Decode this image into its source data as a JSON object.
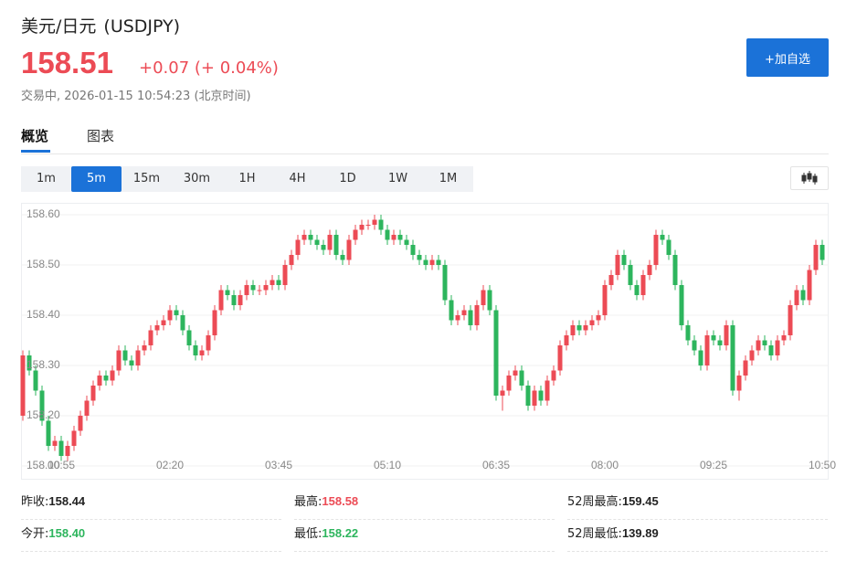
{
  "header": {
    "title": "美元/日元",
    "symbol": "(USDJPY)",
    "price": "158.51",
    "change": "+0.07 (+ 0.04%)",
    "status": "交易中, 2026-01-15 10:54:23 (北京时间)",
    "add_button": "+加自选"
  },
  "tabs": [
    "概览",
    "图表"
  ],
  "active_tab": 0,
  "intervals": [
    "1m",
    "5m",
    "15m",
    "30m",
    "1H",
    "4H",
    "1D",
    "1W",
    "1M"
  ],
  "active_interval": 1,
  "chart_data": {
    "type": "candlestick",
    "categories": [
      null,
      null,
      null,
      null,
      null,
      null,
      "00:55",
      null,
      null,
      null,
      null,
      null,
      null,
      null,
      null,
      null,
      null,
      null,
      null,
      null,
      null,
      null,
      null,
      "02:20",
      null,
      null,
      null,
      null,
      null,
      null,
      null,
      null,
      null,
      null,
      null,
      null,
      null,
      null,
      null,
      null,
      "03:45",
      null,
      null,
      null,
      null,
      null,
      null,
      null,
      null,
      null,
      null,
      null,
      null,
      null,
      null,
      null,
      null,
      "05:10",
      null,
      null,
      null,
      null,
      null,
      null,
      null,
      null,
      null,
      null,
      null,
      null,
      null,
      null,
      null,
      null,
      "06:35",
      null,
      null,
      null,
      null,
      null,
      null,
      null,
      null,
      null,
      null,
      null,
      null,
      null,
      null,
      null,
      null,
      "08:00",
      null,
      null,
      null,
      null,
      null,
      null,
      null,
      null,
      null,
      null,
      null,
      null,
      null,
      null,
      null,
      null,
      "09:25",
      null,
      null,
      null,
      null,
      null,
      null,
      null,
      null,
      null,
      null,
      null,
      null,
      null,
      null,
      null,
      null,
      "10:50"
    ],
    "open": [
      158.2,
      158.32,
      158.29,
      158.25,
      158.19,
      158.14,
      158.15,
      158.12,
      158.14,
      158.17,
      158.2,
      158.23,
      158.26,
      158.28,
      158.27,
      158.29,
      158.33,
      158.31,
      158.3,
      158.33,
      158.34,
      158.37,
      158.38,
      158.39,
      158.41,
      158.4,
      158.37,
      158.34,
      158.32,
      158.33,
      158.36,
      158.41,
      158.45,
      158.44,
      158.42,
      158.44,
      158.46,
      158.45,
      158.45,
      158.46,
      158.47,
      158.46,
      158.5,
      158.52,
      158.55,
      158.56,
      158.55,
      158.54,
      158.53,
      158.56,
      158.52,
      158.51,
      158.55,
      158.57,
      158.58,
      158.58,
      158.59,
      158.57,
      158.55,
      158.56,
      158.55,
      158.54,
      158.52,
      158.51,
      158.5,
      158.51,
      158.5,
      158.43,
      158.39,
      158.4,
      158.41,
      158.38,
      158.42,
      158.45,
      158.41,
      158.24,
      158.25,
      158.28,
      158.29,
      158.26,
      158.22,
      158.25,
      158.23,
      158.27,
      158.29,
      158.34,
      158.36,
      158.38,
      158.37,
      158.38,
      158.39,
      158.4,
      158.46,
      158.48,
      158.52,
      158.5,
      158.46,
      158.44,
      158.48,
      158.5,
      158.56,
      158.55,
      158.52,
      158.46,
      158.38,
      158.35,
      158.33,
      158.3,
      158.36,
      158.35,
      158.34,
      158.38,
      158.25,
      158.28,
      158.31,
      158.33,
      158.35,
      158.34,
      158.32,
      158.35,
      158.36,
      158.42,
      158.45,
      158.43,
      158.49,
      158.54
    ],
    "high": [
      158.33,
      158.33,
      158.3,
      158.26,
      158.2,
      158.16,
      158.16,
      158.15,
      158.18,
      158.21,
      158.24,
      158.27,
      158.29,
      158.29,
      158.3,
      158.34,
      158.34,
      158.32,
      158.34,
      158.35,
      158.38,
      158.39,
      158.4,
      158.42,
      158.42,
      158.41,
      158.38,
      158.35,
      158.34,
      158.37,
      158.42,
      158.46,
      158.46,
      158.45,
      158.45,
      158.47,
      158.47,
      158.46,
      158.47,
      158.48,
      158.48,
      158.51,
      158.53,
      158.56,
      158.57,
      158.57,
      158.56,
      158.55,
      158.57,
      158.57,
      158.53,
      158.56,
      158.58,
      158.59,
      158.59,
      158.6,
      158.6,
      158.58,
      158.57,
      158.57,
      158.56,
      158.55,
      158.53,
      158.52,
      158.52,
      158.52,
      158.51,
      158.44,
      158.41,
      158.42,
      158.42,
      158.43,
      158.46,
      158.46,
      158.42,
      158.26,
      158.29,
      158.3,
      158.3,
      158.27,
      158.26,
      158.26,
      158.28,
      158.3,
      158.35,
      158.37,
      158.39,
      158.39,
      158.39,
      158.4,
      158.41,
      158.47,
      158.49,
      158.53,
      158.53,
      158.51,
      158.47,
      158.49,
      158.51,
      158.57,
      158.57,
      158.56,
      158.53,
      158.47,
      158.39,
      158.36,
      158.34,
      158.37,
      158.37,
      158.36,
      158.39,
      158.39,
      158.29,
      158.32,
      158.34,
      158.36,
      158.36,
      158.35,
      158.36,
      158.37,
      158.43,
      158.46,
      158.46,
      158.5,
      158.55,
      158.55
    ],
    "low": [
      158.19,
      158.28,
      158.24,
      158.18,
      158.13,
      158.13,
      158.11,
      158.11,
      158.13,
      158.16,
      158.19,
      158.22,
      158.25,
      158.26,
      158.26,
      158.28,
      158.3,
      158.29,
      158.29,
      158.32,
      158.33,
      158.36,
      158.37,
      158.38,
      158.39,
      158.36,
      158.33,
      158.31,
      158.31,
      158.32,
      158.35,
      158.4,
      158.43,
      158.41,
      158.41,
      158.43,
      158.44,
      158.44,
      158.44,
      158.45,
      158.45,
      158.45,
      158.49,
      158.51,
      158.54,
      158.54,
      158.53,
      158.52,
      158.52,
      158.51,
      158.5,
      158.5,
      158.54,
      158.56,
      158.57,
      158.57,
      158.56,
      158.54,
      158.54,
      158.54,
      158.53,
      158.51,
      158.5,
      158.49,
      158.49,
      158.49,
      158.42,
      158.38,
      158.38,
      158.39,
      158.37,
      158.37,
      158.41,
      158.4,
      158.23,
      158.21,
      158.24,
      158.27,
      158.25,
      158.21,
      158.21,
      158.22,
      158.22,
      158.26,
      158.28,
      158.33,
      158.35,
      158.36,
      158.36,
      158.37,
      158.38,
      158.39,
      158.45,
      158.47,
      158.49,
      158.45,
      158.43,
      158.43,
      158.47,
      158.49,
      158.54,
      158.51,
      158.45,
      158.37,
      158.34,
      158.32,
      158.29,
      158.29,
      158.34,
      158.33,
      158.33,
      158.24,
      158.23,
      158.27,
      158.3,
      158.32,
      158.33,
      158.31,
      158.31,
      158.34,
      158.35,
      158.41,
      158.42,
      158.42,
      158.48,
      158.5
    ],
    "close": [
      158.32,
      158.29,
      158.25,
      158.19,
      158.14,
      158.15,
      158.12,
      158.14,
      158.17,
      158.2,
      158.23,
      158.26,
      158.28,
      158.27,
      158.29,
      158.33,
      158.31,
      158.3,
      158.33,
      158.34,
      158.37,
      158.38,
      158.39,
      158.41,
      158.4,
      158.37,
      158.34,
      158.32,
      158.33,
      158.36,
      158.41,
      158.45,
      158.44,
      158.42,
      158.44,
      158.46,
      158.45,
      158.45,
      158.46,
      158.47,
      158.46,
      158.5,
      158.52,
      158.55,
      158.56,
      158.55,
      158.54,
      158.53,
      158.56,
      158.52,
      158.51,
      158.55,
      158.57,
      158.58,
      158.58,
      158.59,
      158.57,
      158.55,
      158.56,
      158.55,
      158.54,
      158.52,
      158.51,
      158.5,
      158.51,
      158.5,
      158.43,
      158.39,
      158.4,
      158.41,
      158.38,
      158.42,
      158.45,
      158.41,
      158.24,
      158.25,
      158.28,
      158.29,
      158.26,
      158.22,
      158.25,
      158.23,
      158.27,
      158.29,
      158.34,
      158.36,
      158.38,
      158.37,
      158.38,
      158.39,
      158.4,
      158.46,
      158.48,
      158.52,
      158.5,
      158.46,
      158.44,
      158.48,
      158.5,
      158.56,
      158.55,
      158.52,
      158.46,
      158.38,
      158.35,
      158.33,
      158.3,
      158.36,
      158.35,
      158.34,
      158.38,
      158.25,
      158.28,
      158.31,
      158.33,
      158.35,
      158.34,
      158.32,
      158.35,
      158.36,
      158.42,
      158.45,
      158.43,
      158.49,
      158.54,
      158.51
    ],
    "up_color": "#ec4b55",
    "down_color": "#2db55d",
    "ylim": [
      158.1,
      158.62
    ],
    "yticks": [
      {
        "value": 158.1,
        "label": "158.10"
      },
      {
        "value": 158.2,
        "label": "158.20"
      },
      {
        "value": 158.3,
        "label": "158.30"
      },
      {
        "value": 158.4,
        "label": "158.40"
      },
      {
        "value": 158.5,
        "label": "158.50"
      },
      {
        "value": 158.6,
        "label": "158.60"
      }
    ],
    "grid": true
  },
  "stats": [
    {
      "label": "昨收:",
      "value": "158.44",
      "color": "#222222"
    },
    {
      "label": "最高:",
      "value": "158.58",
      "color": "#ec4b55"
    },
    {
      "label": "52周最高:",
      "value": "159.45",
      "color": "#222222"
    },
    {
      "label": "今开:",
      "value": "158.40",
      "color": "#2db55d"
    },
    {
      "label": "最低:",
      "value": "158.22",
      "color": "#2db55d"
    },
    {
      "label": "52周最低:",
      "value": "139.89",
      "color": "#222222"
    }
  ]
}
